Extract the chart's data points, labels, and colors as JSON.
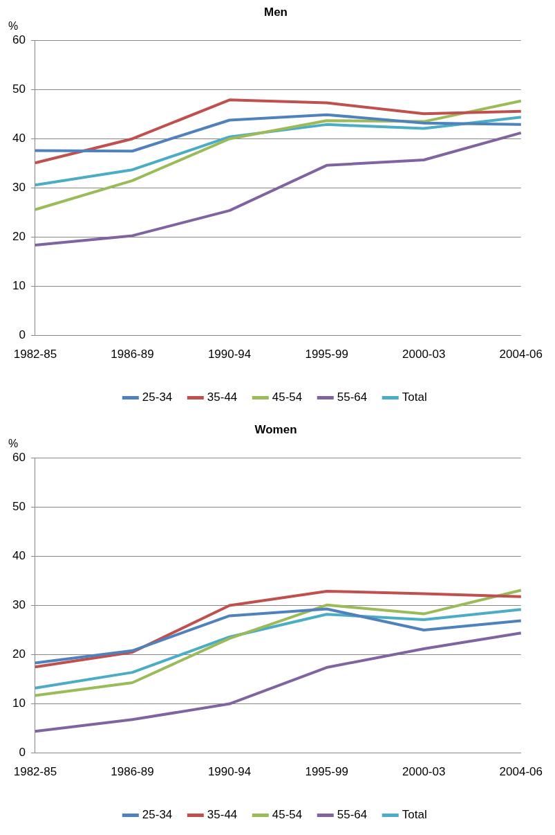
{
  "chart_data": [
    {
      "type": "line",
      "title": "Men",
      "ylabel": "%",
      "categories": [
        "1982-85",
        "1986-89",
        "1990-94",
        "1995-99",
        "2000-03",
        "2004-06"
      ],
      "ylim": [
        0,
        60
      ],
      "yticks": [
        0,
        10,
        20,
        30,
        40,
        50,
        60
      ],
      "grid": "y",
      "legend": "bottom",
      "marker": "none",
      "series": [
        {
          "name": "25-34",
          "color": "#4f81bd",
          "values": [
            37.6,
            37.5,
            43.8,
            44.9,
            43.2,
            42.9
          ]
        },
        {
          "name": "35-44",
          "color": "#c0504d",
          "values": [
            35.1,
            40.0,
            47.9,
            47.3,
            45.1,
            45.6
          ]
        },
        {
          "name": "45-54",
          "color": "#9bbb59",
          "values": [
            25.6,
            31.5,
            40.0,
            43.7,
            43.5,
            47.7
          ]
        },
        {
          "name": "55-64",
          "color": "#8064a2",
          "values": [
            18.4,
            20.3,
            25.4,
            34.6,
            35.7,
            41.2
          ]
        },
        {
          "name": "Total",
          "color": "#4bacc6",
          "values": [
            30.6,
            33.7,
            40.4,
            42.9,
            42.1,
            44.4
          ]
        }
      ]
    },
    {
      "type": "line",
      "title": "Women",
      "ylabel": "%",
      "categories": [
        "1982-85",
        "1986-89",
        "1990-94",
        "1995-99",
        "2000-03",
        "2004-06"
      ],
      "ylim": [
        0,
        60
      ],
      "yticks": [
        0,
        10,
        20,
        30,
        40,
        50,
        60
      ],
      "grid": "y",
      "legend": "bottom",
      "marker": "none",
      "series": [
        {
          "name": "25-34",
          "color": "#4f81bd",
          "values": [
            18.3,
            20.8,
            27.9,
            29.3,
            25.0,
            26.9
          ]
        },
        {
          "name": "35-44",
          "color": "#c0504d",
          "values": [
            17.5,
            20.5,
            30.0,
            32.9,
            32.4,
            31.8
          ]
        },
        {
          "name": "45-54",
          "color": "#9bbb59",
          "values": [
            11.7,
            14.3,
            23.3,
            30.1,
            28.3,
            33.1
          ]
        },
        {
          "name": "55-64",
          "color": "#8064a2",
          "values": [
            4.4,
            6.8,
            10.0,
            17.4,
            21.2,
            24.4
          ]
        },
        {
          "name": "Total",
          "color": "#4bacc6",
          "values": [
            13.2,
            16.4,
            23.6,
            28.2,
            27.1,
            29.2
          ]
        }
      ]
    }
  ]
}
